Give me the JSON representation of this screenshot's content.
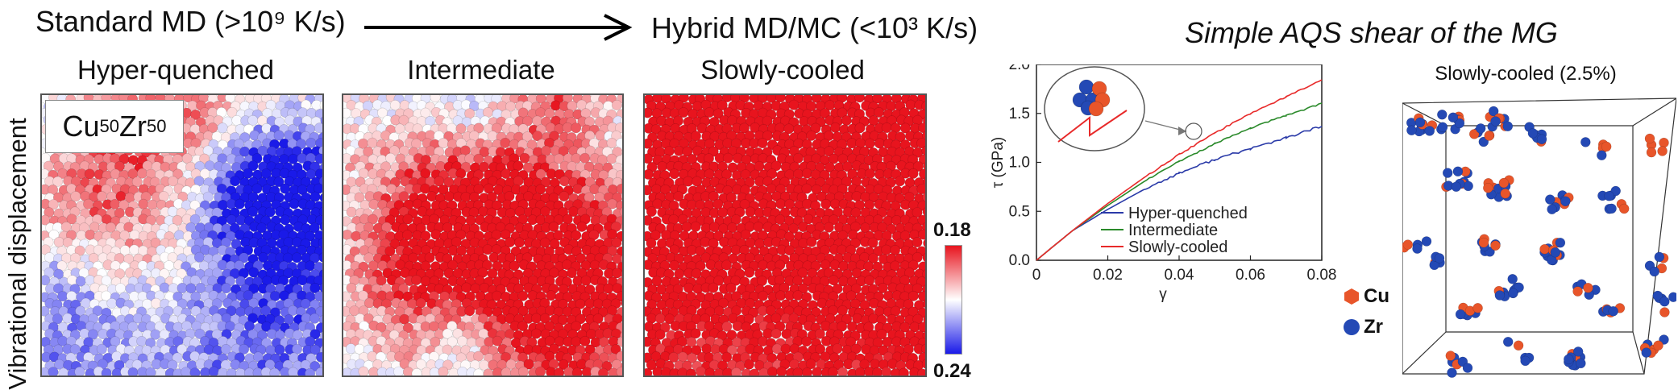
{
  "header": {
    "left_label": "Standard MD (>10⁹ K/s)",
    "right_label": "Hybrid MD/MC (<10³ K/s)",
    "aqs_title": "Simple AQS shear of the MG"
  },
  "side_label": "Vibrational displacement",
  "composition": {
    "base": "Cu",
    "sub1": "50",
    "mid": "Zr",
    "sub2": "50"
  },
  "panels": [
    {
      "title": "Hyper-quenched",
      "red_fraction": 0.3
    },
    {
      "title": "Intermediate",
      "red_fraction": 0.48
    },
    {
      "title": "Slowly-cooled",
      "red_fraction": 0.93
    }
  ],
  "colorbar": {
    "top": "0.18",
    "bottom": "0.24",
    "colors": [
      "#e8141e",
      "#ffffff",
      "#1a1ae8"
    ]
  },
  "right_panel": {
    "title": "Slowly-cooled (2.5%)"
  },
  "atom_legend": [
    {
      "label": "Cu",
      "color": "#e8552a",
      "icon": "hexagon-icon"
    },
    {
      "label": "Zr",
      "color": "#2449b5",
      "icon": "circle-icon"
    }
  ],
  "chart_data": {
    "type": "line",
    "xlabel": "γ",
    "ylabel": "τ (GPa)",
    "xlim": [
      0,
      0.08
    ],
    "ylim": [
      0,
      2.0
    ],
    "xticks": [
      "0",
      "0.02",
      "0.04",
      "0.06",
      "0.08"
    ],
    "yticks": [
      "0.0",
      "0.5",
      "1.0",
      "1.5",
      "2.0"
    ],
    "legend_position": "bottom-right",
    "grid": false,
    "series": [
      {
        "name": "Hyper-quenched",
        "color": "#2a3aa8",
        "x": [
          0,
          0.01,
          0.02,
          0.03,
          0.04,
          0.05,
          0.06,
          0.07,
          0.08
        ],
        "y": [
          0,
          0.3,
          0.52,
          0.72,
          0.89,
          1.03,
          1.14,
          1.25,
          1.37
        ]
      },
      {
        "name": "Intermediate",
        "color": "#2a8a2a",
        "x": [
          0,
          0.01,
          0.02,
          0.03,
          0.04,
          0.05,
          0.06,
          0.07,
          0.08
        ],
        "y": [
          0,
          0.3,
          0.56,
          0.8,
          1.01,
          1.19,
          1.35,
          1.48,
          1.6
        ]
      },
      {
        "name": "Slowly-cooled",
        "color": "#e82a2a",
        "x": [
          0,
          0.01,
          0.02,
          0.03,
          0.04,
          0.05,
          0.06,
          0.07,
          0.08
        ],
        "y": [
          0,
          0.3,
          0.58,
          0.84,
          1.08,
          1.3,
          1.5,
          1.67,
          1.84
        ]
      }
    ]
  }
}
